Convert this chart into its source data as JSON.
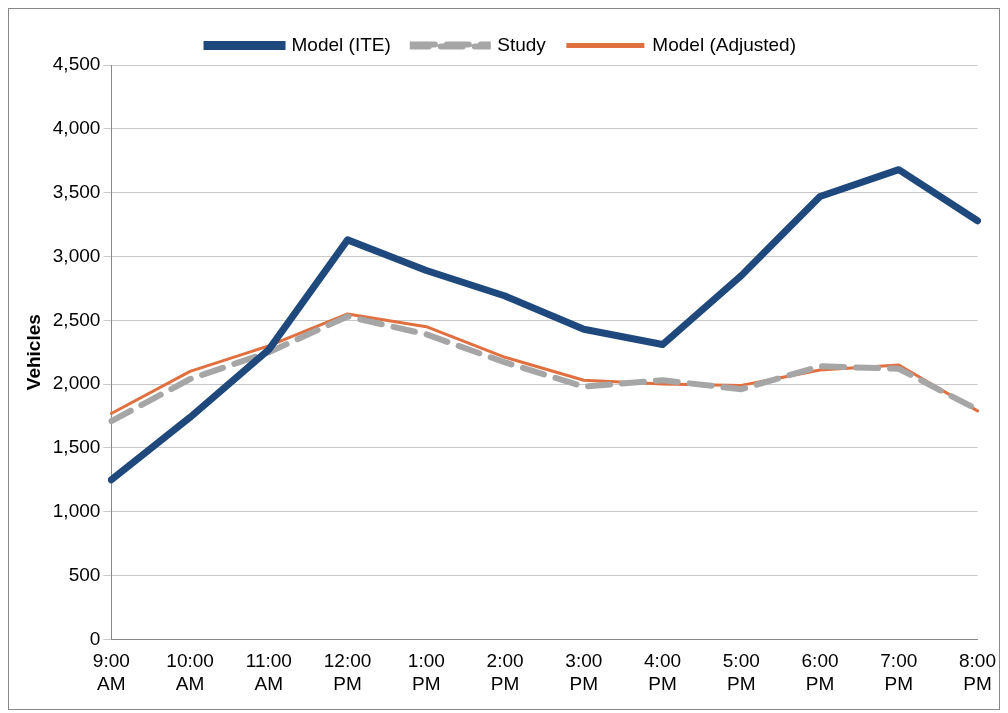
{
  "chart_data": {
    "type": "line",
    "ylabel": "Vehicles",
    "categories": [
      "9:00\nAM",
      "10:00\nAM",
      "11:00\nAM",
      "12:00\nPM",
      "1:00\nPM",
      "2:00\nPM",
      "3:00\nPM",
      "4:00\nPM",
      "5:00\nPM",
      "6:00\nPM",
      "7:00\nPM",
      "8:00\nPM"
    ],
    "series": [
      {
        "name": "Model (ITE)",
        "color": "#1f497d",
        "values": [
          1250,
          1740,
          2270,
          3130,
          2890,
          2690,
          2430,
          2310,
          2850,
          3470,
          3680,
          3280
        ]
      },
      {
        "name": "Study",
        "color": "#a6a6a6",
        "line_style": "dashed",
        "values": [
          1710,
          2040,
          2250,
          2530,
          2390,
          2170,
          1980,
          2030,
          1960,
          2140,
          2120,
          1800
        ]
      },
      {
        "name": "Model (Adjusted)",
        "color": "#e07040",
        "values": [
          1770,
          2100,
          2300,
          2550,
          2450,
          2210,
          2030,
          2000,
          1990,
          2110,
          2150,
          1790
        ]
      }
    ],
    "ylim": [
      0,
      4500
    ],
    "yticks": [
      0,
      500,
      {
        "value": 1000,
        "label": "1,000"
      },
      {
        "value": 1500,
        "label": "1,500"
      },
      {
        "value": 2000,
        "label": "2,000"
      },
      {
        "value": 2500,
        "label": "2,500"
      },
      {
        "value": 3000,
        "label": "3,000"
      },
      {
        "value": 3500,
        "label": "3,500"
      },
      {
        "value": 4000,
        "label": "4,000"
      },
      {
        "value": 4500,
        "label": "4,500"
      }
    ],
    "grid": "y",
    "legend": "top",
    "marker": "none"
  }
}
